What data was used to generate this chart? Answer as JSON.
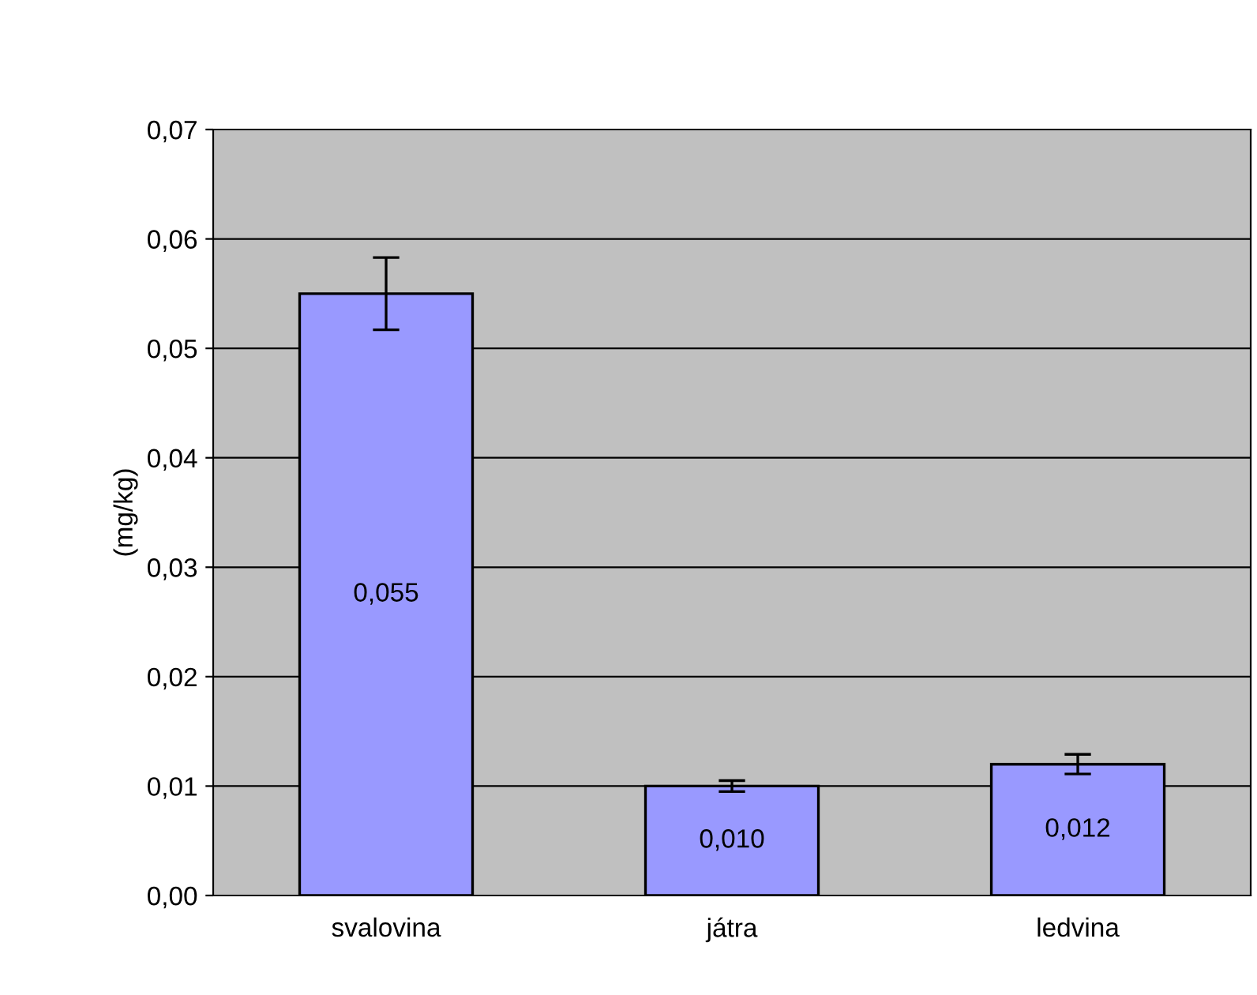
{
  "chart_data": {
    "type": "bar",
    "ylabel": "(mg/kg)",
    "categories": [
      "svalovina",
      "játra",
      "ledvina"
    ],
    "values": [
      0.055,
      0.01,
      0.012
    ],
    "value_labels": [
      "0,055",
      "0,010",
      "0,012"
    ],
    "errors": [
      0.0033,
      0.0005,
      0.0009
    ],
    "color": "#9999ff",
    "ylim": [
      0,
      0.07
    ],
    "yticks": [
      {
        "value": 0,
        "label": "0,00"
      },
      {
        "value": 0.01,
        "label": "0,01"
      },
      {
        "value": 0.02,
        "label": "0,02"
      },
      {
        "value": 0.03,
        "label": "0,03"
      },
      {
        "value": 0.04,
        "label": "0,04"
      },
      {
        "value": 0.05,
        "label": "0,05"
      },
      {
        "value": 0.06,
        "label": "0,06"
      },
      {
        "value": 0.07,
        "label": "0,07"
      }
    ],
    "grid": "y"
  }
}
